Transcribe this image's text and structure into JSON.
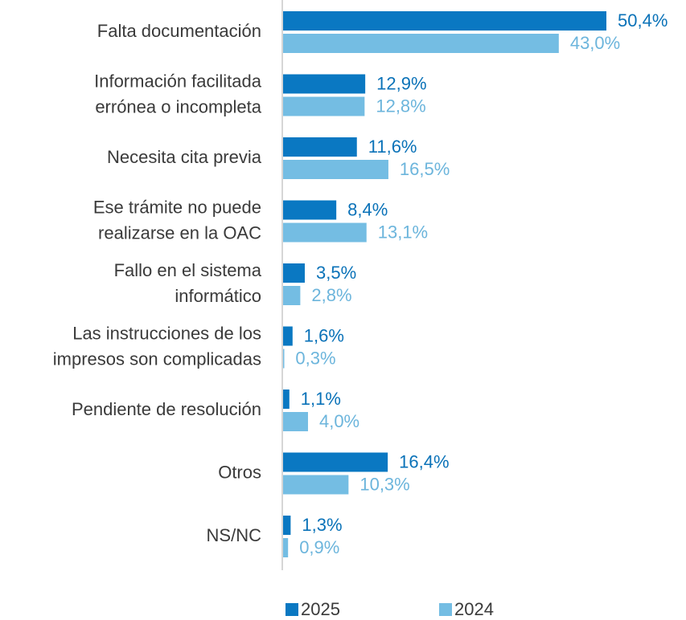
{
  "chart_data": {
    "type": "bar",
    "orientation": "horizontal",
    "categories": [
      [
        "Falta documentación"
      ],
      [
        "Información facilitada",
        "errónea o incompleta"
      ],
      [
        "Necesita cita previa"
      ],
      [
        "Ese trámite no puede",
        "realizarse en la OAC"
      ],
      [
        "Fallo en el sistema",
        "informático"
      ],
      [
        "Las instrucciones de los",
        "impresos son complicadas"
      ],
      [
        "Pendiente de resolución"
      ],
      [
        "Otros"
      ],
      [
        "NS/NC"
      ]
    ],
    "series": [
      {
        "name": "2025",
        "color": "#0a78c2",
        "label_color": "#0a72b8",
        "values": [
          50.4,
          12.9,
          11.6,
          8.4,
          3.5,
          1.6,
          1.1,
          16.4,
          1.3
        ],
        "value_labels": [
          "50,4%",
          "12,9%",
          "11,6%",
          "8,4%",
          "3,5%",
          "1,6%",
          "1,1%",
          "16,4%",
          "1,3%"
        ]
      },
      {
        "name": "2024",
        "color": "#74bde3",
        "label_color": "#6cb5dc",
        "values": [
          43.0,
          12.8,
          16.5,
          13.1,
          2.8,
          0.3,
          4.0,
          10.3,
          0.9
        ],
        "value_labels": [
          "43,0%",
          "12,8%",
          "16,5%",
          "13,1%",
          "2,8%",
          "0,3%",
          "4,0%",
          "10,3%",
          "0,9%"
        ]
      }
    ],
    "legend": "bottom"
  }
}
